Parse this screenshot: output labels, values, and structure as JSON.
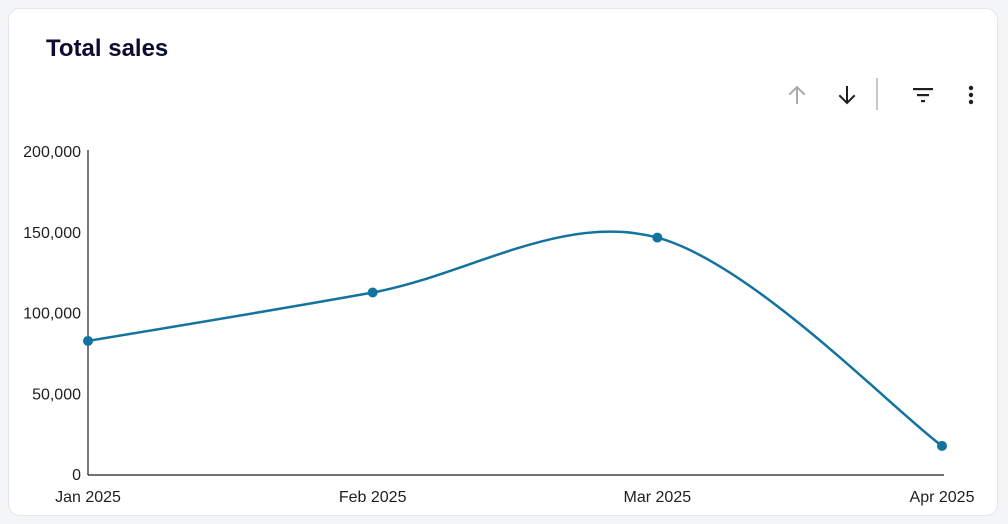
{
  "card": {
    "title": "Total sales"
  },
  "toolbar": {
    "sort_ascending_icon": "arrow-up-icon",
    "sort_descending_icon": "arrow-down-icon",
    "filter_icon": "filter-icon",
    "more_icon": "more-vertical-icon"
  },
  "colors": {
    "series": "#1273a0",
    "axis": "#1f1f1f",
    "title": "#0b0d2e",
    "icon_active": "#1f1f1f",
    "icon_disabled": "#a8aaad"
  },
  "chart_data": {
    "type": "line",
    "title": "Total sales",
    "xlabel": "",
    "ylabel": "",
    "categories": [
      "Jan 2025",
      "Feb 2025",
      "Mar 2025",
      "Apr 2025"
    ],
    "series": [
      {
        "values": [
          83000,
          113000,
          147000,
          18000
        ]
      }
    ],
    "ylim": [
      0,
      200000
    ],
    "yticks": [
      0,
      50000,
      100000,
      150000,
      200000
    ],
    "ytick_labels": [
      "0",
      "50,000",
      "100,000",
      "150,000",
      "200,000"
    ],
    "grid": false,
    "smooth": true,
    "legend": "none"
  }
}
